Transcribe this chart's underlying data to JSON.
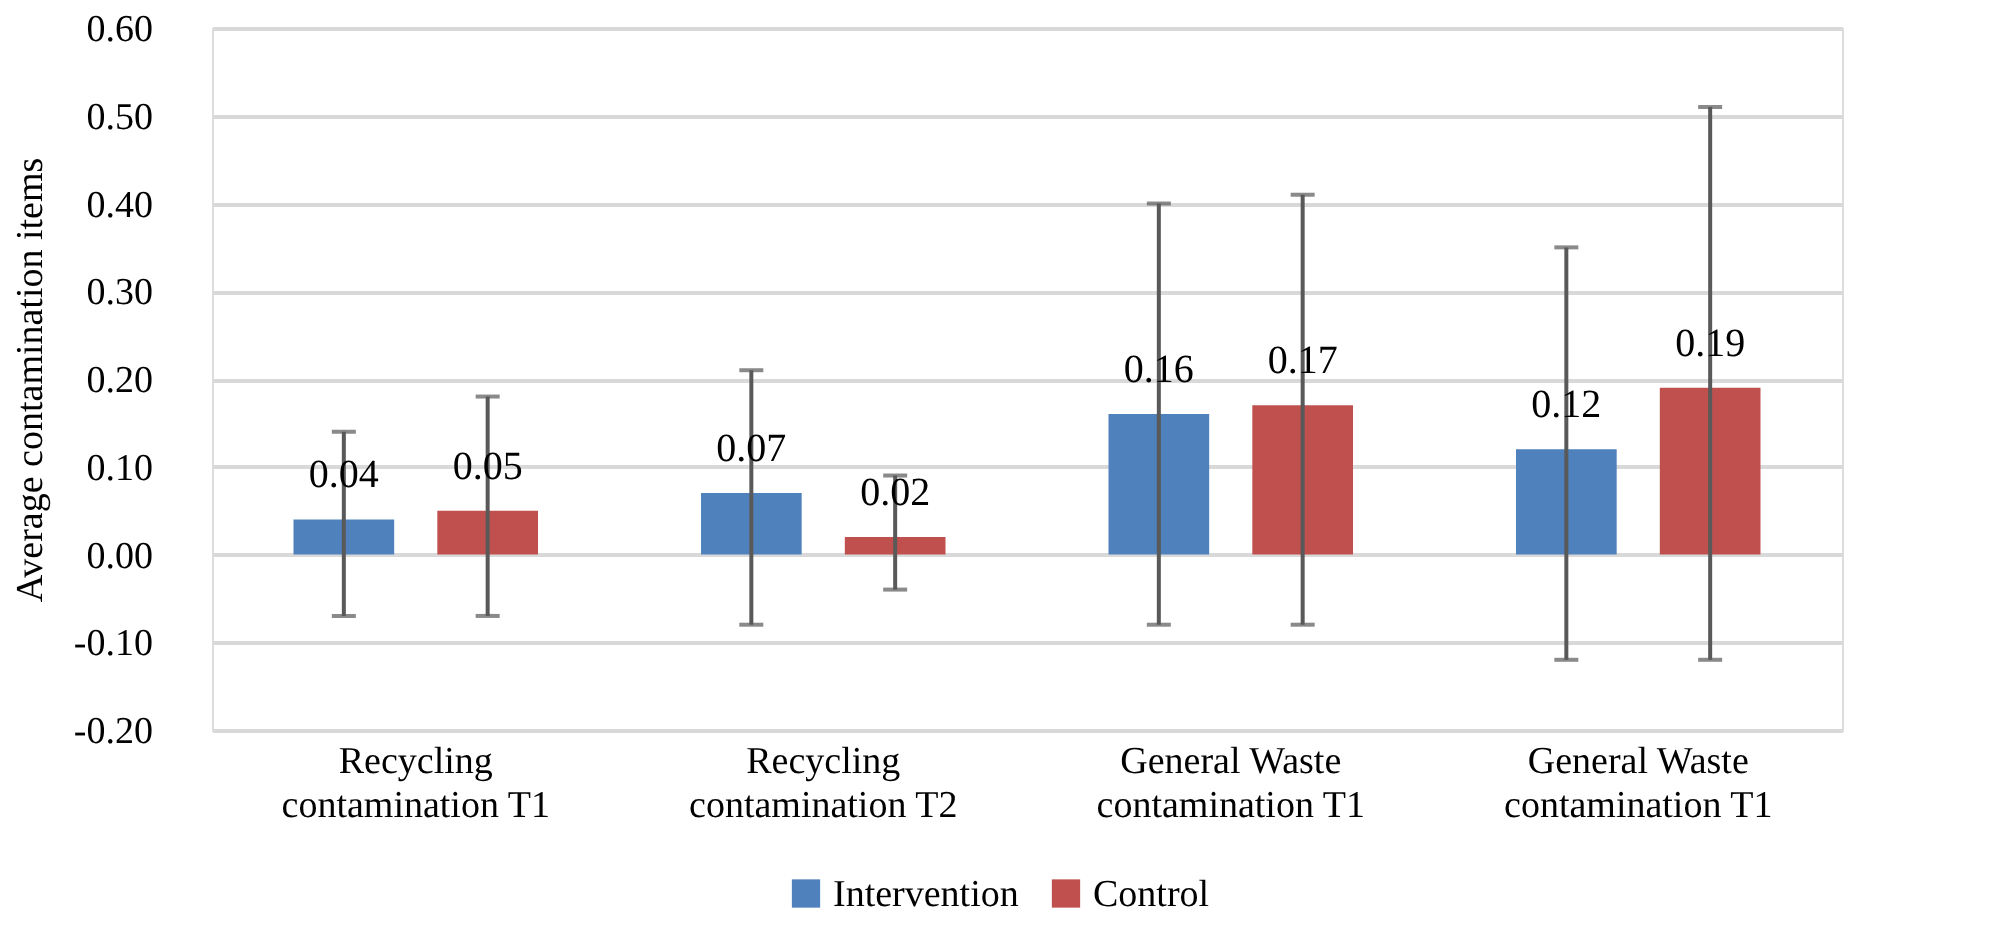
{
  "chart_data": {
    "type": "bar",
    "ylabel": "Average contamination items",
    "categories": [
      "Recycling contamination T1",
      "Recycling contamination T2",
      "General Waste contamination T1",
      "General Waste contamination T1"
    ],
    "series": [
      {
        "name": "Intervention",
        "color": "#4f81bd",
        "values": [
          0.04,
          0.07,
          0.16,
          0.12
        ],
        "errors": [
          [
            -0.07,
            0.14
          ],
          [
            -0.08,
            0.21
          ],
          [
            -0.08,
            0.4
          ],
          [
            -0.12,
            0.35
          ]
        ]
      },
      {
        "name": "Control",
        "color": "#c0504d",
        "values": [
          0.05,
          0.02,
          0.17,
          0.19
        ],
        "errors": [
          [
            -0.07,
            0.18
          ],
          [
            -0.04,
            0.09
          ],
          [
            -0.08,
            0.41
          ],
          [
            -0.12,
            0.51
          ]
        ]
      }
    ],
    "ylim": [
      -0.2,
      0.6
    ],
    "yticks": [
      {
        "value": -0.2,
        "label": "-0.20"
      },
      {
        "value": -0.1,
        "label": "-0.10"
      },
      {
        "value": 0,
        "label": "0.00"
      },
      {
        "value": 0.1,
        "label": "0.10"
      },
      {
        "value": 0.2,
        "label": "0.20"
      },
      {
        "value": 0.3,
        "label": "0.30"
      },
      {
        "value": 0.4,
        "label": "0.40"
      },
      {
        "value": 0.5,
        "label": "0.50"
      },
      {
        "value": 0.6,
        "label": "0.60"
      }
    ],
    "grid": "y",
    "legend": "bottom",
    "data_labels": true
  }
}
